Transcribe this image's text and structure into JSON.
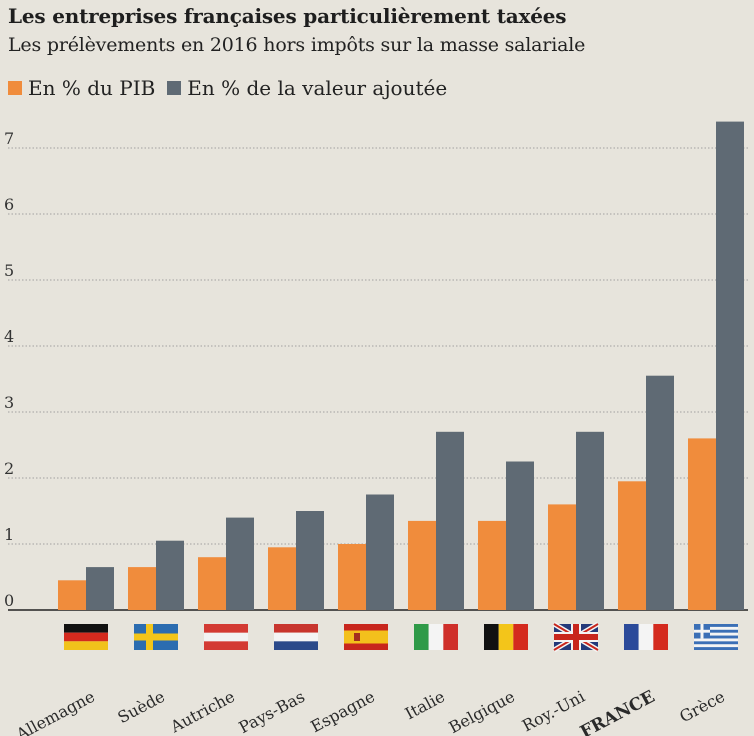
{
  "header": {
    "title": "Les entreprises françaises particulièrement taxées",
    "subtitle": "Les prélèvements en 2016 hors impôts sur la masse salariale"
  },
  "legend": [
    {
      "label": "En % du PIB",
      "color": "#f08c3c"
    },
    {
      "label": "En % de la valeur ajoutée",
      "color": "#5f6a74"
    }
  ],
  "chart_data": {
    "type": "bar",
    "categories": [
      "Allemagne",
      "Suède",
      "Autriche",
      "Pays-Bas",
      "Espagne",
      "Italie",
      "Belgique",
      "Roy.-Uni",
      "FRANCE",
      "Grèce"
    ],
    "highlight": "FRANCE",
    "series": [
      {
        "name": "En % du PIB",
        "color": "#f08c3c",
        "values": [
          0.45,
          0.65,
          0.8,
          0.95,
          1.0,
          1.35,
          1.35,
          1.6,
          1.95,
          2.6
        ]
      },
      {
        "name": "En % de la valeur ajoutée",
        "color": "#5f6a74",
        "values": [
          0.65,
          1.05,
          1.4,
          1.5,
          1.75,
          2.7,
          2.25,
          2.7,
          3.55,
          7.4
        ]
      }
    ],
    "ylim": [
      0,
      7.5
    ],
    "yticks": [
      0,
      1,
      2,
      3,
      4,
      5,
      6,
      7
    ],
    "grid": true,
    "legend_position": "top-left",
    "flags": [
      "germany-flag",
      "sweden-flag",
      "austria-flag",
      "netherlands-flag",
      "spain-flag",
      "italy-flag",
      "belgium-flag",
      "uk-flag",
      "france-flag",
      "greece-flag"
    ]
  }
}
